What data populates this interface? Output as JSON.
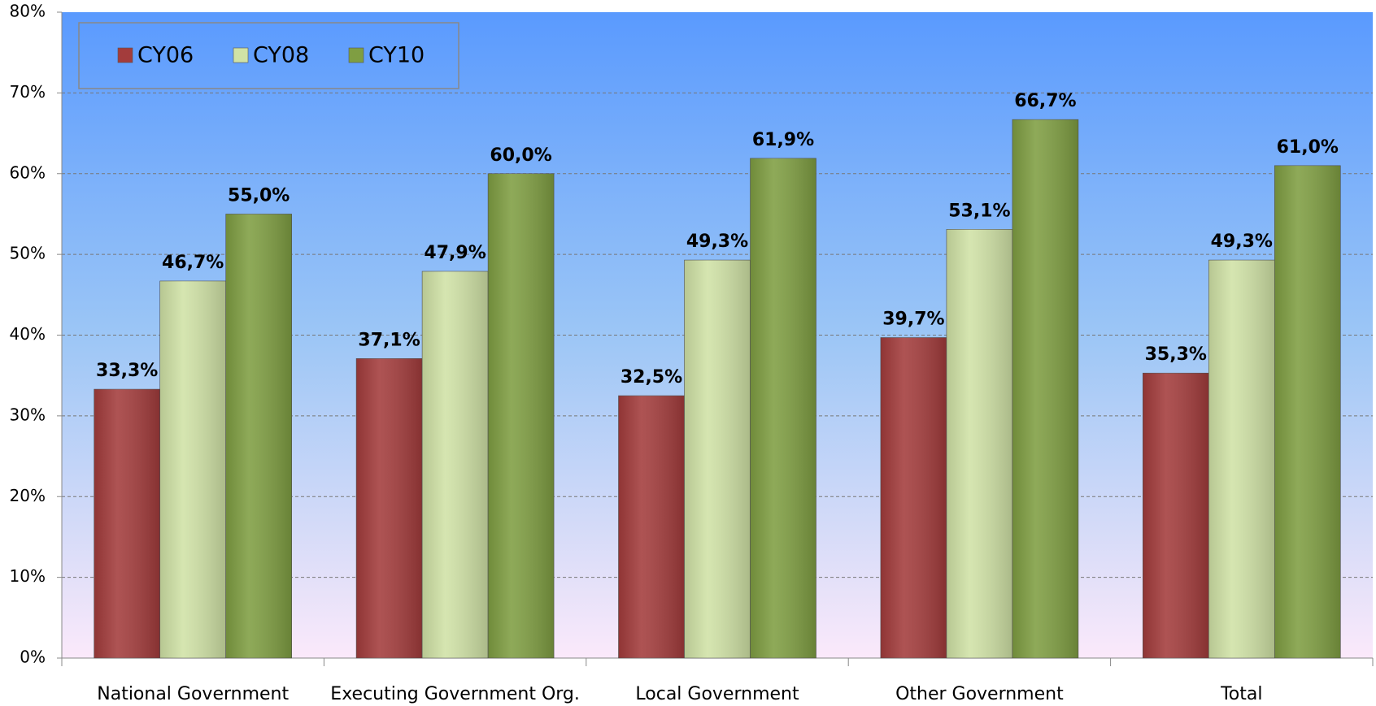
{
  "chart_data": {
    "type": "bar",
    "categories": [
      "National Government",
      "Executing Government Org.",
      "Local Government",
      "Other Government",
      "Total"
    ],
    "series": [
      {
        "name": "CY06",
        "color": "#a33c3c",
        "values": [
          33.3,
          37.1,
          32.5,
          39.7,
          35.3
        ],
        "value_labels": [
          "33,3%",
          "37,1%",
          "32,5%",
          "39,7%",
          "35,3%"
        ]
      },
      {
        "name": "CY08",
        "color": "#d0e2a6",
        "values": [
          46.7,
          47.9,
          49.3,
          53.1,
          49.3
        ],
        "value_labels": [
          "46,7%",
          "47,9%",
          "49,3%",
          "53,1%",
          "49,3%"
        ]
      },
      {
        "name": "CY10",
        "color": "#7f9e42",
        "values": [
          55.0,
          60.0,
          61.9,
          66.7,
          61.0
        ],
        "value_labels": [
          "55,0%",
          "60,0%",
          "61,9%",
          "66,7%",
          "61,0%"
        ]
      }
    ],
    "ylim": [
      0,
      80
    ],
    "yticks": [
      {
        "value": 0,
        "label": "0%"
      },
      {
        "value": 10,
        "label": "10%"
      },
      {
        "value": 20,
        "label": "20%"
      },
      {
        "value": 30,
        "label": "30%"
      },
      {
        "value": 40,
        "label": "40%"
      },
      {
        "value": 50,
        "label": "50%"
      },
      {
        "value": 60,
        "label": "60%"
      },
      {
        "value": 70,
        "label": "70%"
      },
      {
        "value": 80,
        "label": "80%"
      }
    ],
    "grid": true,
    "legend": "upper left"
  }
}
